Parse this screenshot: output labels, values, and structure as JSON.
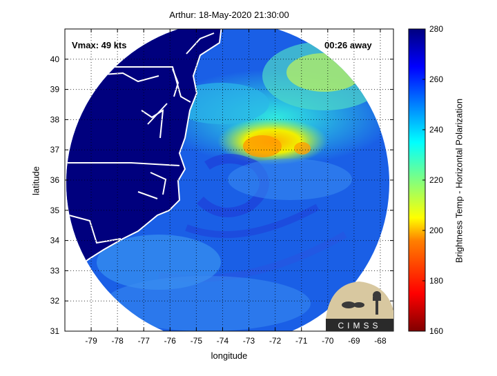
{
  "title": "Arthur: 18-May-2020 21:30:00",
  "annotations": {
    "vmax": "Vmax: 49 kts",
    "away": "00:26 away"
  },
  "axes": {
    "xlabel": "longitude",
    "ylabel": "latitude",
    "xticks": [
      "-79",
      "-78",
      "-77",
      "-76",
      "-75",
      "-74",
      "-73",
      "-72",
      "-71",
      "-70",
      "-69",
      "-68"
    ],
    "yticks": [
      "31",
      "32",
      "33",
      "34",
      "35",
      "36",
      "37",
      "38",
      "39",
      "40"
    ],
    "xlim": [
      -80,
      -67.5
    ],
    "ylim": [
      31,
      41
    ],
    "grid": "dotted"
  },
  "colorbar": {
    "label": "Brightness Temp - Horizontal Polarization",
    "ticks": [
      "160",
      "180",
      "200",
      "220",
      "240",
      "260",
      "280"
    ],
    "range": [
      160,
      280
    ],
    "colormap": "jet"
  },
  "logo": {
    "text": "CIMSS"
  },
  "colors": {
    "land": "#00007e",
    "ocean_base": "#1a5fe6",
    "coast": "#ffffff"
  }
}
